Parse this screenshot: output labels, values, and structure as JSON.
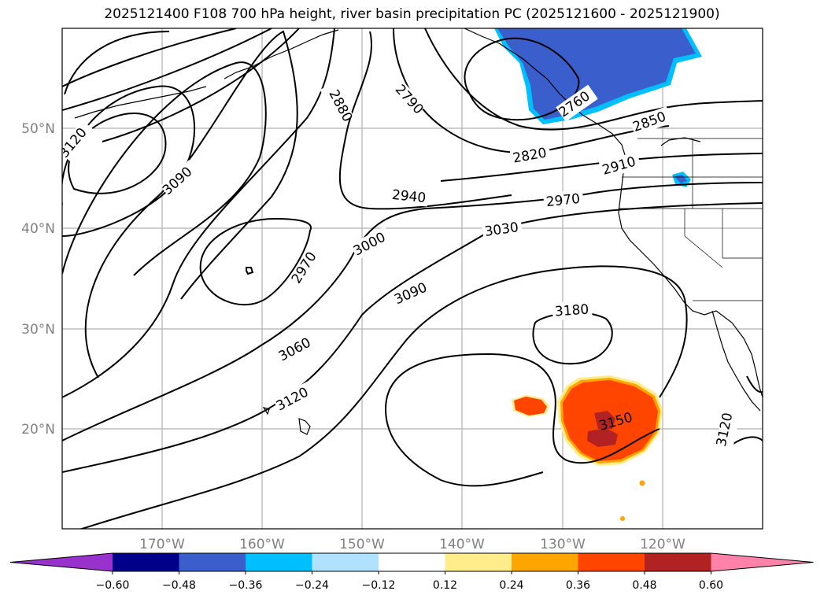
{
  "title": "2025121400 F108 700 hPa height, river basin precipitation PC (2025121600 - 2025121900)",
  "lon_labels": [
    "170°W",
    "160°W",
    "150°W",
    "140°W",
    "130°W",
    "120°W"
  ],
  "lat_labels": [
    "50°N",
    "40°N",
    "30°N",
    "20°N"
  ],
  "contour_labels": [
    "3120",
    "3090",
    "2880",
    "2790",
    "2760",
    "2850",
    "2820",
    "2910",
    "2940",
    "2970",
    "3030",
    "3000",
    "2970",
    "3090",
    "3180",
    "3060",
    "3120",
    "3150",
    "3120"
  ],
  "colorbar": {
    "colors": [
      "#9932cc",
      "#00008b",
      "#3a5fcd",
      "#00bfff",
      "#b0e2ff",
      "#ffffff",
      "#ffec8b",
      "#ffa500",
      "#ff4500",
      "#b22222",
      "#ff82ab"
    ],
    "tick_labels": [
      "−0.60",
      "−0.48",
      "−0.36",
      "−0.24",
      "−0.12",
      "0.12",
      "0.24",
      "0.36",
      "0.48",
      "0.60"
    ]
  },
  "chart_data": {
    "type": "contour-map",
    "title": "2025121400 F108 700 hPa height, river basin precipitation PC (2025121600 - 2025121900)",
    "projection": "PlateCarree",
    "lon_range": [
      -180,
      -110
    ],
    "lat_range": [
      10,
      60
    ],
    "xticks": [
      -170,
      -160,
      -150,
      -140,
      -130,
      -120
    ],
    "yticks": [
      50,
      40,
      30,
      20
    ],
    "grid": true,
    "contour_variable": "700 hPa geopotential height (m)",
    "contour_interval": 30,
    "contour_levels_labeled": [
      2760,
      2790,
      2820,
      2850,
      2880,
      2910,
      2940,
      2970,
      3000,
      3030,
      3060,
      3090,
      3120,
      3150,
      3180
    ],
    "fill_variable": "river basin precipitation PC",
    "fill_levels": [
      -0.6,
      -0.48,
      -0.36,
      -0.24,
      -0.12,
      0.12,
      0.24,
      0.36,
      0.48,
      0.6
    ],
    "fill_colors": [
      "#9932cc",
      "#00008b",
      "#3a5fcd",
      "#00bfff",
      "#b0e2ff",
      "#ffffff",
      "#ffec8b",
      "#ffa500",
      "#ff4500",
      "#b22222",
      "#ff82ab"
    ],
    "colorbar_extend": "both",
    "colorbar_orientation": "horizontal"
  }
}
